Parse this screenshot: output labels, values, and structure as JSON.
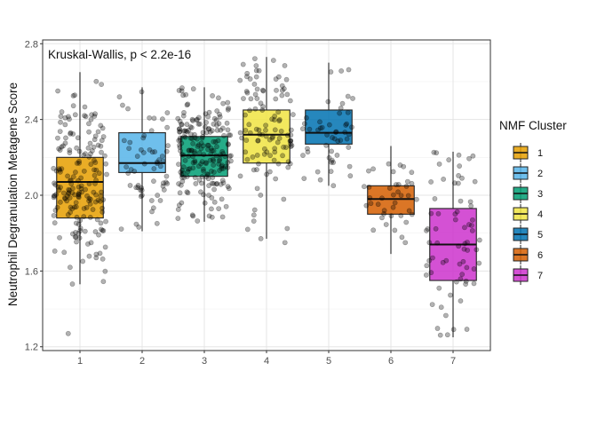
{
  "chart_data": {
    "type": "boxplot",
    "title": "",
    "annotation": "Kruskal-Wallis, p < 2.2e-16",
    "xlabel": "",
    "ylabel": "Neutrophil Degranulation Metagene Score",
    "ylim": [
      1.18,
      2.82
    ],
    "yticks": [
      1.2,
      1.6,
      2.0,
      2.4,
      2.8
    ],
    "ytick_labels": [
      "1.2",
      "1.6",
      "2.0",
      "2.4",
      "2.8"
    ],
    "categories": [
      "1",
      "2",
      "3",
      "4",
      "5",
      "6",
      "7"
    ],
    "grid": true,
    "legend": {
      "title": "NMF Cluster",
      "placement": "right"
    },
    "series": [
      {
        "name": "1",
        "color": "#E69F00",
        "q1": 1.88,
        "median": 2.07,
        "q3": 2.2,
        "whisker_low": 1.53,
        "whisker_high": 2.65,
        "n_points": 190,
        "outliers": [
          1.27
        ]
      },
      {
        "name": "2",
        "color": "#56B4E9",
        "q1": 2.12,
        "median": 2.17,
        "q3": 2.33,
        "whisker_low": 1.81,
        "whisker_high": 2.57,
        "n_points": 60,
        "outliers": []
      },
      {
        "name": "3",
        "color": "#009E73",
        "q1": 2.1,
        "median": 2.21,
        "q3": 2.31,
        "whisker_low": 1.86,
        "whisker_high": 2.57,
        "n_points": 210,
        "outliers": []
      },
      {
        "name": "4",
        "color": "#F0E442",
        "q1": 2.17,
        "median": 2.32,
        "q3": 2.45,
        "whisker_low": 1.77,
        "whisker_high": 2.73,
        "n_points": 110,
        "outliers": [
          1.82,
          1.75
        ]
      },
      {
        "name": "5",
        "color": "#0072B2",
        "q1": 2.27,
        "median": 2.33,
        "q3": 2.45,
        "whisker_low": 2.05,
        "whisker_high": 2.7,
        "n_points": 50,
        "outliers": []
      },
      {
        "name": "6",
        "color": "#D55E00",
        "q1": 1.9,
        "median": 1.98,
        "q3": 2.05,
        "whisker_low": 1.69,
        "whisker_high": 2.26,
        "n_points": 40,
        "outliers": []
      },
      {
        "name": "7",
        "color": "#CC33CC",
        "q1": 1.55,
        "median": 1.74,
        "q3": 1.93,
        "whisker_low": 1.25,
        "whisker_high": 2.23,
        "n_points": 70,
        "outliers": []
      }
    ]
  }
}
